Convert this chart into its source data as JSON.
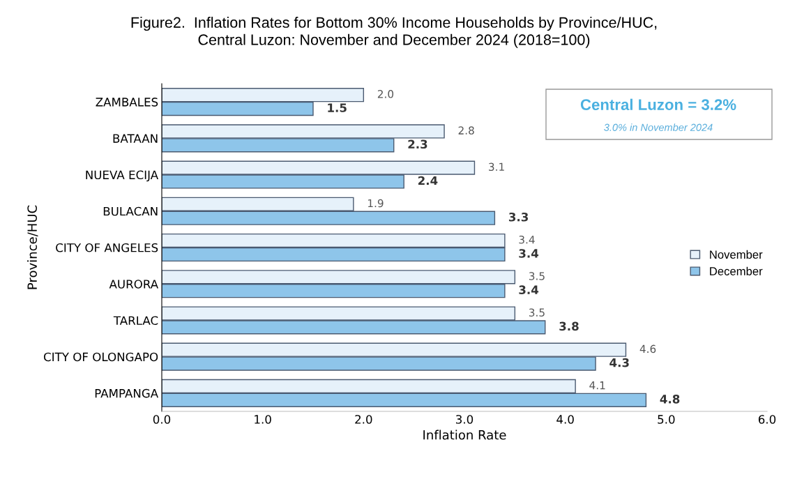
{
  "chart_data": {
    "type": "bar",
    "orientation": "horizontal",
    "title": "Figure2.  Inflation Rates for Bottom 30% Income Households by Province/HUC,\nCentral Luzon: November and December 2024 (2018=100)",
    "xlabel": "Inflation Rate",
    "ylabel": "Province/HUC",
    "categories": [
      "ZAMBALES",
      "BATAAN",
      "NUEVA ECIJA",
      "BULACAN",
      "CITY OF ANGELES",
      "AURORA",
      "TARLAC",
      "CITY OF OLONGAPO",
      "PAMPANGA"
    ],
    "series": [
      {
        "name": "November",
        "color": "#e6f1fa",
        "values": [
          2.0,
          2.8,
          3.1,
          1.9,
          3.4,
          3.5,
          3.5,
          4.6,
          4.1
        ],
        "value_labels": [
          "2.0",
          "2.8",
          "3.1",
          "1.9",
          "3.4",
          "3.5",
          "3.5",
          "4.6",
          "4.1"
        ]
      },
      {
        "name": "December",
        "color": "#8ec5ea",
        "values": [
          1.5,
          2.3,
          2.4,
          3.3,
          3.4,
          3.4,
          3.8,
          4.3,
          4.8
        ],
        "value_labels": [
          "1.5",
          "2.3",
          "2.4",
          "3.3",
          "3.4",
          "3.4",
          "3.8",
          "4.3",
          "4.8"
        ]
      }
    ],
    "xlim": [
      0,
      6
    ],
    "xticks": [
      {
        "value": 0,
        "label": "0.0"
      },
      {
        "value": 1,
        "label": "1.0"
      },
      {
        "value": 2,
        "label": "2.0"
      },
      {
        "value": 3,
        "label": "3.0"
      },
      {
        "value": 4,
        "label": "4.0"
      },
      {
        "value": 5,
        "label": "5.0"
      },
      {
        "value": 6,
        "label": "6.0"
      }
    ],
    "annotations": [
      "Central Luzon = 3.2%",
      "3.0% in November 2024"
    ],
    "legend": "center right",
    "grid": false
  }
}
